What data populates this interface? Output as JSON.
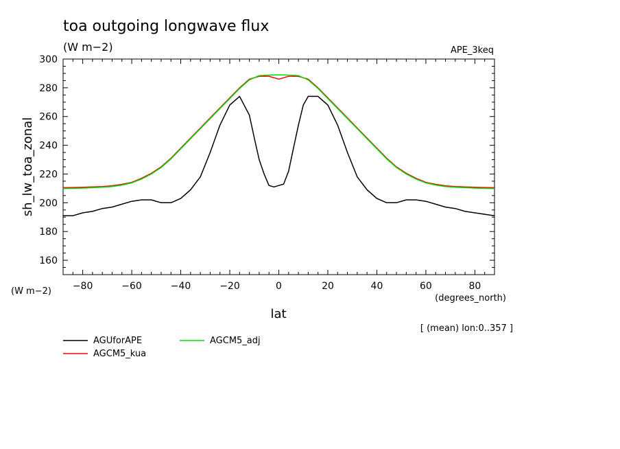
{
  "header": {
    "title": "toa outgoing longwave flux",
    "units": "(W m−2)",
    "experiment": "APE_3keq",
    "y_units_corner": "(W m−2)",
    "x_units_label": "(degrees_north)",
    "mean_note": "[ (mean) lon:0..357 ]"
  },
  "chart_data": {
    "type": "line",
    "title": "toa outgoing longwave flux",
    "xlabel": "lat",
    "ylabel": "sh_lw_toa_zonal",
    "xlim": [
      -88,
      88
    ],
    "ylim": [
      150,
      300
    ],
    "xticks": [
      -80,
      -60,
      -40,
      -20,
      0,
      20,
      40,
      60,
      80
    ],
    "yticks": [
      160,
      180,
      200,
      220,
      240,
      260,
      280,
      300
    ],
    "series": [
      {
        "name": "AGUforAPE",
        "color": "#000000",
        "x": [
          -88,
          -84,
          -80,
          -76,
          -72,
          -68,
          -64,
          -60,
          -56,
          -52,
          -48,
          -44,
          -40,
          -36,
          -32,
          -28,
          -24,
          -20,
          -16,
          -12,
          -10,
          -8,
          -6,
          -4,
          -2,
          0,
          2,
          4,
          6,
          8,
          10,
          12,
          16,
          20,
          24,
          28,
          32,
          36,
          40,
          44,
          48,
          52,
          56,
          60,
          64,
          68,
          72,
          76,
          80,
          84,
          88
        ],
        "y": [
          191,
          191,
          193,
          194,
          196,
          197,
          199,
          201,
          202,
          202,
          200,
          200,
          203,
          209,
          218,
          235,
          254,
          268,
          274,
          261,
          245,
          230,
          220,
          212,
          211,
          212,
          213,
          222,
          238,
          254,
          268,
          274,
          274,
          268,
          254,
          235,
          218,
          209,
          203,
          200,
          200,
          202,
          202,
          201,
          199,
          197,
          196,
          194,
          193,
          192,
          191
        ]
      },
      {
        "name": "AGCM5_kua",
        "color": "#ff0000",
        "x": [
          -88,
          -84,
          -80,
          -76,
          -72,
          -68,
          -64,
          -60,
          -56,
          -52,
          -48,
          -44,
          -40,
          -36,
          -32,
          -28,
          -24,
          -20,
          -16,
          -12,
          -8,
          -4,
          0,
          4,
          8,
          12,
          16,
          20,
          24,
          28,
          32,
          36,
          40,
          44,
          48,
          52,
          56,
          60,
          64,
          68,
          72,
          76,
          80,
          84,
          88
        ],
        "y": [
          210.5,
          210.6,
          210.8,
          211,
          211.3,
          211.8,
          212.8,
          214.2,
          217,
          220.5,
          225,
          231,
          238,
          245,
          252,
          259,
          266,
          273,
          280,
          286,
          288,
          288,
          286,
          288,
          288,
          286,
          280,
          273,
          266,
          259,
          252,
          245,
          238,
          231,
          225,
          220.5,
          217,
          214.2,
          212.8,
          211.8,
          211.3,
          211,
          210.8,
          210.6,
          210.5
        ]
      },
      {
        "name": "AGCM5_adj",
        "color": "#00dd00",
        "x": [
          -88,
          -84,
          -80,
          -76,
          -72,
          -68,
          -64,
          -60,
          -56,
          -52,
          -48,
          -44,
          -40,
          -36,
          -32,
          -28,
          -24,
          -20,
          -16,
          -12,
          -8,
          -4,
          0,
          4,
          8,
          12,
          16,
          20,
          24,
          28,
          32,
          36,
          40,
          44,
          48,
          52,
          56,
          60,
          64,
          68,
          72,
          76,
          80,
          84,
          88
        ],
        "y": [
          209.8,
          210,
          210.2,
          210.5,
          210.8,
          211.3,
          212.3,
          213.8,
          216.5,
          220,
          224.5,
          230.5,
          237.5,
          244.5,
          251.5,
          258.5,
          265.5,
          272.5,
          279.5,
          285.5,
          288.5,
          288.8,
          289,
          288.8,
          288.5,
          285.5,
          279.5,
          272.5,
          265.5,
          258.5,
          251.5,
          244.5,
          237.5,
          230.5,
          224.5,
          220,
          216.5,
          213.8,
          212.3,
          211.3,
          210.8,
          210.5,
          210.2,
          210,
          209.8
        ]
      }
    ],
    "legend_order": [
      "AGUforAPE",
      "AGCM5_adj",
      "AGCM5_kua"
    ]
  }
}
